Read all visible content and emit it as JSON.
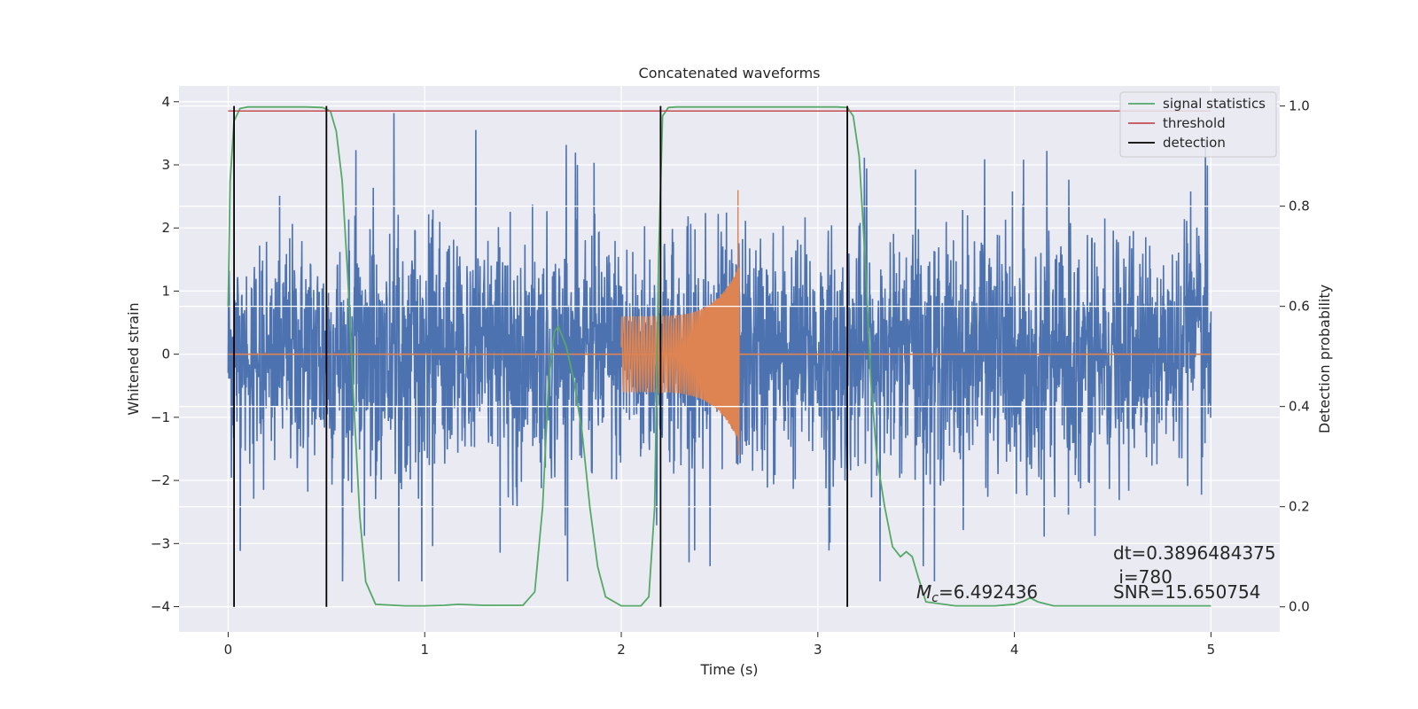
{
  "chart_data": {
    "type": "line",
    "title": "Concatenated waveforms",
    "xlabel": "Time (s)",
    "ylabel": "Whitened strain",
    "y2label": "Detection probability",
    "xlim": [
      -0.25,
      5.35
    ],
    "ylim": [
      -4.4,
      4.25
    ],
    "y2lim": [
      -0.05,
      1.04
    ],
    "xticks": [
      0,
      1,
      2,
      3,
      4,
      5
    ],
    "yticks": [
      -4,
      -3,
      -2,
      -1,
      0,
      1,
      2,
      3,
      4
    ],
    "y2ticks": [
      0.0,
      0.2,
      0.4,
      0.6,
      0.8,
      1.0
    ],
    "grid": true,
    "legend_position": "top-right",
    "legend": [
      "signal statistics",
      "threshold",
      "detection"
    ],
    "colors": {
      "strain": "#4c72b0",
      "template": "#dd8452",
      "signal": "#55a868",
      "threshold": "#c44e52",
      "detection": "#000000",
      "background": "#eaeaf2"
    },
    "series": [
      {
        "role": "whitened strain noise",
        "x_range": [
          0,
          5
        ],
        "approx_amplitude": 2.5,
        "peak_y": 3.9
      },
      {
        "role": "injected chirp template",
        "x_range": [
          2.0,
          2.6
        ],
        "start_amplitude": 0.6,
        "peak_y": 2.6,
        "min_y": -1.6
      },
      {
        "name": "signal statistics",
        "axis": "right",
        "x": [
          0.0,
          0.01,
          0.03,
          0.06,
          0.1,
          0.2,
          0.3,
          0.4,
          0.48,
          0.52,
          0.55,
          0.58,
          0.61,
          0.64,
          0.67,
          0.7,
          0.75,
          0.9,
          1.0,
          1.1,
          1.17,
          1.3,
          1.5,
          1.56,
          1.6,
          1.63,
          1.66,
          1.68,
          1.72,
          1.76,
          1.8,
          1.84,
          1.88,
          1.92,
          2.0,
          2.1,
          2.14,
          2.17,
          2.19,
          2.21,
          2.24,
          2.28,
          2.4,
          2.6,
          2.8,
          3.0,
          3.1,
          3.15,
          3.18,
          3.21,
          3.24,
          3.27,
          3.3,
          3.34,
          3.38,
          3.42,
          3.45,
          3.48,
          3.51,
          3.55,
          3.7,
          3.9,
          4.0,
          4.05,
          4.08,
          4.12,
          4.2,
          4.5,
          5.0
        ],
        "y": [
          0.6,
          0.85,
          0.97,
          0.995,
          0.998,
          0.998,
          0.998,
          0.998,
          0.997,
          0.99,
          0.95,
          0.85,
          0.65,
          0.4,
          0.18,
          0.05,
          0.005,
          0.002,
          0.002,
          0.003,
          0.005,
          0.003,
          0.003,
          0.03,
          0.2,
          0.45,
          0.55,
          0.56,
          0.52,
          0.45,
          0.35,
          0.2,
          0.08,
          0.02,
          0.002,
          0.002,
          0.02,
          0.2,
          0.7,
          0.98,
          0.997,
          0.998,
          0.998,
          0.998,
          0.998,
          0.998,
          0.998,
          0.997,
          0.98,
          0.9,
          0.7,
          0.45,
          0.3,
          0.2,
          0.12,
          0.1,
          0.11,
          0.1,
          0.06,
          0.01,
          0.002,
          0.002,
          0.005,
          0.012,
          0.018,
          0.01,
          0.002,
          0.002,
          0.002
        ]
      },
      {
        "name": "threshold",
        "axis": "right",
        "x": [
          0,
          5
        ],
        "y": [
          0.99,
          0.99
        ]
      }
    ],
    "detections": [
      0.03,
      0.5,
      2.2,
      3.15
    ],
    "annotations": {
      "mc_label": "M",
      "mc_sub": "c",
      "mc_value": "=6.492436",
      "dt": "dt=0.3896484375",
      "i": " i=780",
      "snr": "SNR=15.650754"
    }
  }
}
